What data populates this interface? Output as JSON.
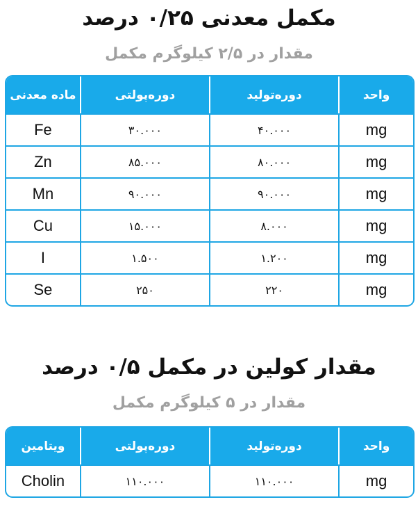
{
  "sections": [
    {
      "title": "مکمل معدنی ۰/۲۵ درصد",
      "subtitle": "مقدار در ۲/۵ کیلوگرم مکمل",
      "table": {
        "header": [
          "ماده معدنی",
          "دوره‌پولتی",
          "دوره‌تولید",
          "واحد"
        ],
        "rows": [
          [
            "Fe",
            "۳۰.۰۰۰",
            "۴۰.۰۰۰",
            "mg"
          ],
          [
            "Zn",
            "۸۵.۰۰۰",
            "۸۰.۰۰۰",
            "mg"
          ],
          [
            "Mn",
            "۹۰.۰۰۰",
            "۹۰.۰۰۰",
            "mg"
          ],
          [
            "Cu",
            "۱۵.۰۰۰",
            "۸.۰۰۰",
            "mg"
          ],
          [
            "I",
            "۱.۵۰۰",
            "۱.۲۰۰",
            "mg"
          ],
          [
            "Se",
            "۲۵۰",
            "۲۲۰",
            "mg"
          ]
        ]
      }
    },
    {
      "title": "مقدار کولین در مکمل ۰/۵ درصد",
      "subtitle": "مقدار در ۵ کیلوگرم مکمل",
      "table": {
        "header": [
          "ویتامین",
          "دوره‌پولتی",
          "دوره‌تولید",
          "واحد"
        ],
        "rows": [
          [
            "Cholin",
            "۱۱۰.۰۰۰",
            "۱۱۰.۰۰۰",
            "mg"
          ]
        ]
      }
    }
  ]
}
